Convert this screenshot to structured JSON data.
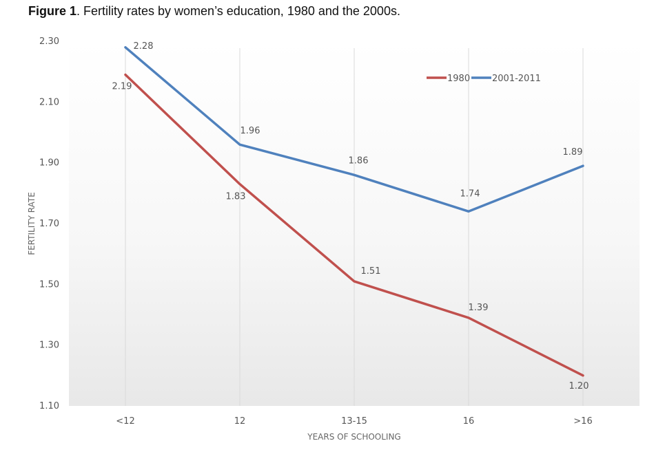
{
  "figure": {
    "label": "Figure 1",
    "caption": ". Fertility rates by women’s education, 1980 and the 2000s."
  },
  "chart_data": {
    "type": "line",
    "categories": [
      "<12",
      "12",
      "13-15",
      "16",
      ">16"
    ],
    "series": [
      {
        "name": "1980",
        "color": "#c0504d",
        "values": [
          2.19,
          1.83,
          1.51,
          1.39,
          1.2
        ],
        "labels": [
          "2.19",
          "1.83",
          "1.51",
          "1.39",
          "1.20"
        ]
      },
      {
        "name": "2001-2011",
        "color": "#4f81bd",
        "values": [
          2.28,
          1.96,
          1.86,
          1.74,
          1.89
        ],
        "labels": [
          "2.28",
          "1.96",
          "1.86",
          "1.74",
          "1.89"
        ]
      }
    ],
    "xlabel": "YEARS OF SCHOOLING",
    "ylabel": "FERTILITY RATE",
    "ylim": [
      1.1,
      2.3
    ],
    "yticks": [
      "1.10",
      "1.30",
      "1.50",
      "1.70",
      "1.90",
      "2.10",
      "2.30"
    ],
    "ytick_values": [
      1.1,
      1.3,
      1.5,
      1.7,
      1.9,
      2.1,
      2.3
    ],
    "grid": "vertical",
    "legend": "top-right"
  }
}
